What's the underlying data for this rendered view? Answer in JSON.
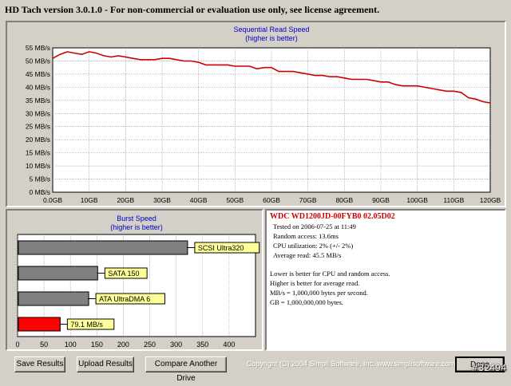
{
  "window": {
    "title": "HD Tach version 3.0.1.0  - For non-commercial or evaluation use only, see license agreement."
  },
  "colors": {
    "background": "#d4d0c8",
    "read_line": "#cc0000",
    "bar_gray": "#808080",
    "bar_red": "#ff0000",
    "label_bg": "#ffff99",
    "title_blue": "#0000cc"
  },
  "chart_data": [
    {
      "type": "line",
      "title": "Sequential Read Speed",
      "subtitle": "(higher is better)",
      "x_ticks": [
        "0.0GB",
        "10GB",
        "20GB",
        "30GB",
        "40GB",
        "50GB",
        "60GB",
        "70GB",
        "80GB",
        "90GB",
        "100GB",
        "110GB",
        "120GB"
      ],
      "y_ticks": [
        "0 MB/s",
        "5 MB/s",
        "10 MB/s",
        "15 MB/s",
        "20 MB/s",
        "25 MB/s",
        "30 MB/s",
        "35 MB/s",
        "40 MB/s",
        "45 MB/s",
        "50 MB/s",
        "55 MB/s"
      ],
      "xlim": [
        0,
        120
      ],
      "ylim": [
        0,
        55
      ],
      "grid": true,
      "series": [
        {
          "x": [
            0,
            2,
            4,
            6,
            8,
            10,
            12,
            14,
            16,
            18,
            20,
            22,
            24,
            26,
            28,
            30,
            32,
            34,
            36,
            38,
            40,
            42,
            44,
            46,
            48,
            50,
            52,
            54,
            56,
            58,
            60,
            62,
            64,
            66,
            68,
            70,
            72,
            74,
            76,
            78,
            80,
            82,
            84,
            86,
            88,
            90,
            92,
            94,
            96,
            98,
            100,
            102,
            104,
            106,
            108,
            110,
            112,
            114,
            116,
            118,
            120
          ],
          "y": [
            51,
            52.5,
            53.5,
            53,
            52.5,
            53.5,
            53,
            52,
            51.5,
            52,
            51.5,
            51,
            50.5,
            50.5,
            50.5,
            51,
            51,
            50.5,
            50,
            50,
            49.5,
            48.5,
            48.5,
            48.5,
            48.5,
            48,
            48,
            48,
            47,
            47.5,
            47.5,
            46,
            46,
            46,
            45.5,
            45,
            44.5,
            44.5,
            44,
            44,
            43.5,
            43,
            43,
            43,
            42.5,
            42,
            42,
            41,
            40.5,
            40.5,
            40.5,
            40,
            39.5,
            39,
            38.5,
            38.5,
            38,
            36,
            35.5,
            34.5,
            34
          ]
        }
      ]
    },
    {
      "type": "bar",
      "title": "Burst Speed",
      "subtitle": "(higher is better)",
      "orientation": "horizontal",
      "x_ticks": [
        "0",
        "50",
        "100",
        "150",
        "200",
        "250",
        "300",
        "350",
        "400"
      ],
      "xlim": [
        0,
        450
      ],
      "categories": [
        "SCSI Ultra320",
        "SATA 150",
        "ATA UltraDMA 6",
        "79.1 MB/s"
      ],
      "values": [
        320,
        150,
        133,
        79.1
      ],
      "colors": [
        "#808080",
        "#808080",
        "#808080",
        "#ff0000"
      ]
    }
  ],
  "info": {
    "drive": "WDC WD1200JD-00FYB0 02.05D02",
    "tested": "Tested on 2006-07-25 at 11:49",
    "random_access": "Random access: 13.6ms",
    "cpu": "CPU utilization: 2% (+/- 2%)",
    "average_read": "Average read: 45.5 MB/s",
    "note1": "Lower is better for CPU and random access.",
    "note2": "Higher is better for average read.",
    "note3": "MB/s = 1,000,000 bytes per second.",
    "note4": "GB = 1,000,000,000 bytes."
  },
  "buttons": {
    "save": "Save Results",
    "upload": "Upload Results",
    "compare": "Compare Another Drive",
    "done": "Done"
  },
  "copyright": "Copyright (C) 2004 Simpli Software, Inc. www.simplisoftware.com",
  "watermark": "#32494"
}
